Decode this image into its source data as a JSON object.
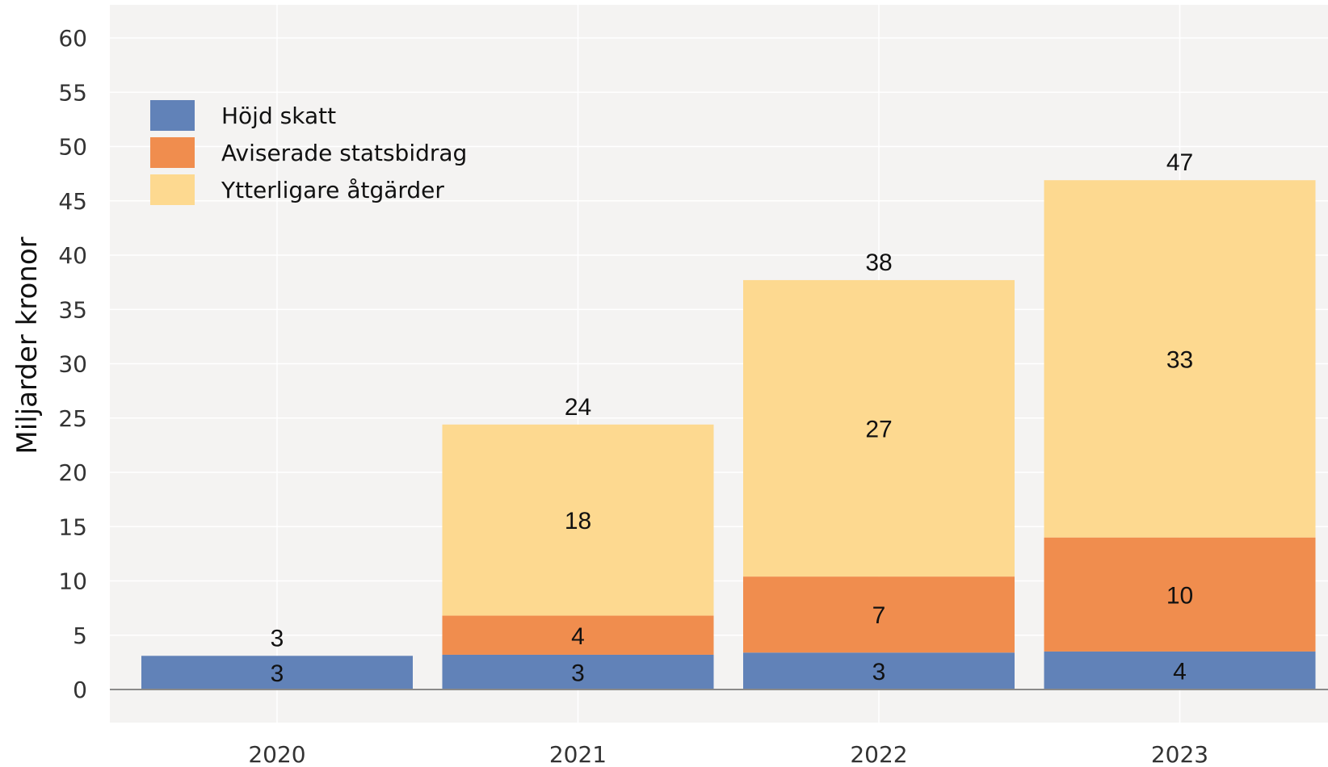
{
  "chart_data": {
    "type": "bar",
    "stacked": true,
    "categories": [
      "2020",
      "2021",
      "2022",
      "2023"
    ],
    "series": [
      {
        "name": "Höjd skatt",
        "color": "#6182b8",
        "values": [
          3.1,
          3.2,
          3.4,
          3.5
        ],
        "labels": [
          "3",
          "3",
          "3",
          "4"
        ]
      },
      {
        "name": "Aviserade statsbidrag",
        "color": "#f08d4e",
        "values": [
          0,
          3.6,
          7.0,
          10.5
        ],
        "labels": [
          "",
          "4",
          "7",
          "10"
        ]
      },
      {
        "name": "Ytterligare åtgärder",
        "color": "#fdd990",
        "values": [
          0,
          17.6,
          27.3,
          32.9
        ],
        "labels": [
          "",
          "18",
          "27",
          "33"
        ]
      }
    ],
    "totals": [
      3.1,
      24.4,
      37.7,
      46.9
    ],
    "total_labels": [
      "3",
      "24",
      "38",
      "47"
    ],
    "ylabel": "Miljarder kronor",
    "xlabel": "",
    "ylim": [
      -3,
      62
    ],
    "yticks": [
      0,
      5,
      10,
      15,
      20,
      25,
      30,
      35,
      40,
      45,
      50,
      55,
      60
    ],
    "grid": true,
    "legend_position": "top-left",
    "background": "#f4f3f2",
    "grid_color": "#ffffff"
  }
}
